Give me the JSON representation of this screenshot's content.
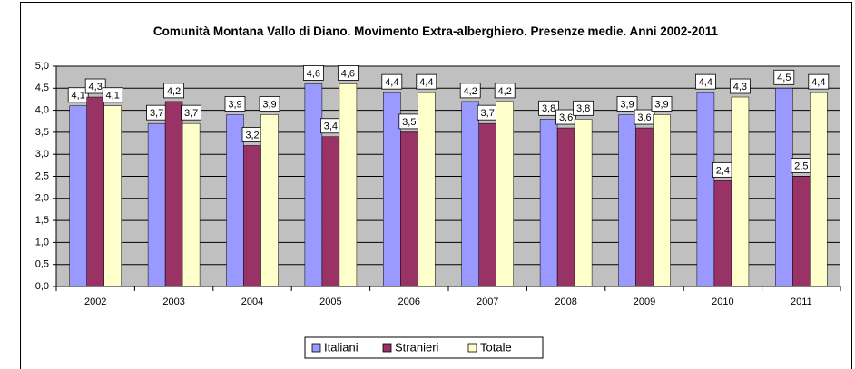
{
  "chart_data": {
    "type": "bar",
    "title": "Comunità Montana Vallo di Diano. Movimento Extra-alberghiero. Presenze medie. Anni 2002-2011",
    "categories": [
      "2002",
      "2003",
      "2004",
      "2005",
      "2006",
      "2007",
      "2008",
      "2009",
      "2010",
      "2011"
    ],
    "series": [
      {
        "name": "Italiani",
        "color": "#9999ff",
        "values": [
          4.1,
          3.7,
          3.9,
          4.6,
          4.4,
          4.2,
          3.8,
          3.9,
          4.4,
          4.5
        ],
        "value_labels": [
          "4,1",
          "3,7",
          "3,9",
          "4,6",
          "4,4",
          "4,2",
          "3,8",
          "3,9",
          "4,4",
          "4,5"
        ]
      },
      {
        "name": "Stranieri",
        "color": "#993366",
        "values": [
          4.3,
          4.2,
          3.2,
          3.4,
          3.5,
          3.7,
          3.6,
          3.6,
          2.4,
          2.5
        ],
        "value_labels": [
          "4,3",
          "4,2",
          "3,2",
          "3,4",
          "3,5",
          "3,7",
          "3,6",
          "3,6",
          "2,4",
          "2,5"
        ]
      },
      {
        "name": "Totale",
        "color": "#ffffcc",
        "values": [
          4.1,
          3.7,
          3.9,
          4.6,
          4.4,
          4.2,
          3.8,
          3.9,
          4.3,
          4.4
        ],
        "value_labels": [
          "4,1",
          "3,7",
          "3,9",
          "4,6",
          "4,4",
          "4,2",
          "3,8",
          "3,9",
          "4,3",
          "4,4"
        ]
      }
    ],
    "ylim": [
      0,
      5
    ],
    "yticks": [
      {
        "value": 0,
        "label": "0,0"
      },
      {
        "value": 0.5,
        "label": "0,5"
      },
      {
        "value": 1,
        "label": "1,0"
      },
      {
        "value": 1.5,
        "label": "1,5"
      },
      {
        "value": 2,
        "label": "2,0"
      },
      {
        "value": 2.5,
        "label": "2,5"
      },
      {
        "value": 3,
        "label": "3,0"
      },
      {
        "value": 3.5,
        "label": "3,5"
      },
      {
        "value": 4,
        "label": "4,0"
      },
      {
        "value": 4.5,
        "label": "4,5"
      },
      {
        "value": 5,
        "label": "5,0"
      }
    ],
    "grid": true,
    "legend": "bottom"
  }
}
